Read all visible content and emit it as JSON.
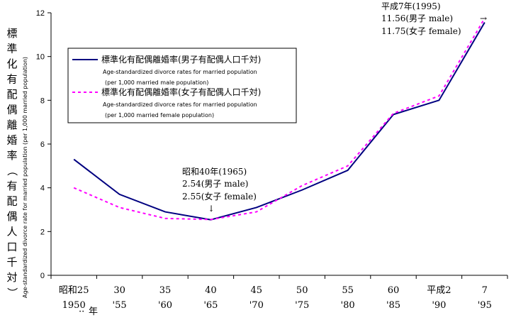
{
  "chart_data": {
    "type": "line",
    "categories": [
      {
        "top": "昭和25",
        "bottom": "1950"
      },
      {
        "top": "30",
        "bottom": "'55"
      },
      {
        "top": "35",
        "bottom": "'60"
      },
      {
        "top": "40",
        "bottom": "'65"
      },
      {
        "top": "45",
        "bottom": "'70"
      },
      {
        "top": "50",
        "bottom": "'75"
      },
      {
        "top": "55",
        "bottom": "'80"
      },
      {
        "top": "60",
        "bottom": "'85"
      },
      {
        "top": "平成2",
        "bottom": "'90"
      },
      {
        "top": "7",
        "bottom": "'95"
      }
    ],
    "x_unit_label": "年",
    "ylim": [
      0,
      12
    ],
    "yticks": [
      "0",
      "2",
      "4",
      "6",
      "8",
      "10",
      "12"
    ],
    "ylabel_jp": "標準化有配偶離婚率（有配偶人口千対）",
    "ylabel_en": "Age-standardized divorce rate for married population (per 1,000 married population)",
    "series": [
      {
        "name": "標準化有配偶離婚率(男子有配偶人口千対)",
        "desc1": "Age-standardized divorce rates for married population",
        "desc2": "(per 1,000 married male population)",
        "color": "#000080",
        "style": "solid",
        "values": [
          5.3,
          3.7,
          2.9,
          2.54,
          3.1,
          3.9,
          4.8,
          7.35,
          8.0,
          11.56
        ]
      },
      {
        "name": "標準化有配偶離婚率(女子有配偶人口千対)",
        "desc1": "Age-standardized divorce rates for married population",
        "desc2": "(per 1,000 married female population)",
        "color": "#ff00ff",
        "style": "dashed",
        "values": [
          4.0,
          3.1,
          2.6,
          2.55,
          2.9,
          4.1,
          5.0,
          7.4,
          8.2,
          11.75
        ]
      }
    ],
    "annotations": [
      {
        "lines": [
          "昭和40年(1965)",
          "2.54(男子 male)",
          "2.55(女子 female)"
        ],
        "arrow": "↓"
      },
      {
        "lines": [
          "平成7年(1995)",
          "11.56(男子 male)",
          "11.75(女子 female)"
        ],
        "arrow": "→"
      }
    ]
  }
}
